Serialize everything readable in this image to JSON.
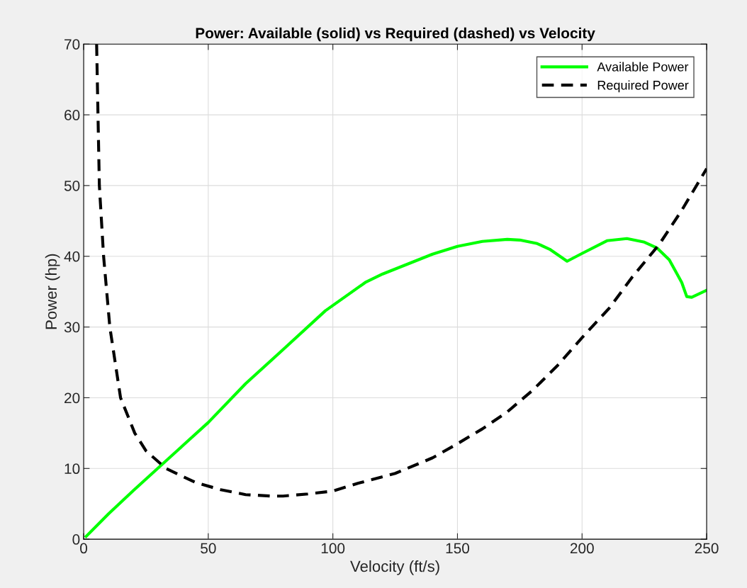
{
  "chart_data": {
    "type": "line",
    "title": "Power: Available (solid) vs Required (dashed) vs Velocity",
    "xlabel": "Velocity (ft/s)",
    "ylabel": "Power (hp)",
    "xlim": [
      0,
      250
    ],
    "ylim": [
      0,
      70
    ],
    "xticks": [
      0,
      50,
      100,
      150,
      200,
      250
    ],
    "yticks": [
      0,
      10,
      20,
      30,
      40,
      50,
      60,
      70
    ],
    "grid": true,
    "legend": "top right",
    "marker": "none",
    "series": [
      {
        "name": "Available Power",
        "color": "#00ff00",
        "line_style": "solid",
        "x": [
          1,
          10,
          20,
          30,
          40,
          50,
          65,
          80,
          97,
          113,
          120,
          130,
          140,
          150,
          160,
          170,
          175,
          182,
          187,
          194,
          200,
          210,
          218,
          225,
          230,
          235,
          240,
          242,
          244,
          250
        ],
        "values": [
          0.4,
          3.6,
          6.9,
          10.1,
          13.3,
          16.5,
          22.0,
          26.8,
          32.3,
          36.3,
          37.5,
          38.9,
          40.3,
          41.4,
          42.1,
          42.4,
          42.3,
          41.8,
          41.0,
          39.3,
          40.4,
          42.2,
          42.5,
          42.0,
          41.2,
          39.5,
          36.3,
          34.3,
          34.2,
          35.2
        ]
      },
      {
        "name": "Required Power",
        "color": "#000000",
        "line_style": "dashed",
        "x": [
          5.2,
          6.3,
          8.0,
          10.5,
          14.8,
          20.5,
          25,
          33,
          45,
          55,
          65,
          75,
          80,
          90,
          100,
          110,
          125,
          140,
          150,
          160,
          170,
          180,
          190,
          200,
          211,
          220,
          231,
          240,
          250
        ],
        "values": [
          70,
          50,
          40,
          30,
          20,
          15,
          12.5,
          10,
          8,
          7,
          6.3,
          6.1,
          6.1,
          6.4,
          6.8,
          7.9,
          9.3,
          11.5,
          13.5,
          15.6,
          18.0,
          21.0,
          24.5,
          28.5,
          32.7,
          37.0,
          41.7,
          46.5,
          52.4
        ]
      }
    ]
  }
}
